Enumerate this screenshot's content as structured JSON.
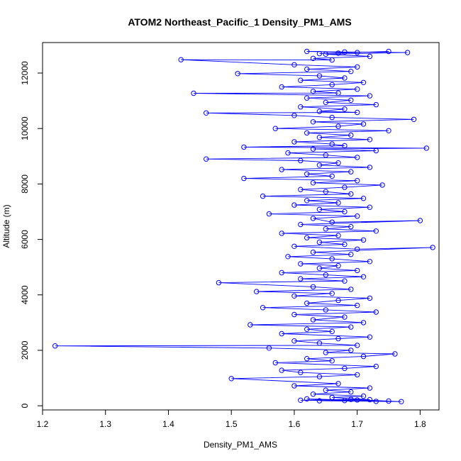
{
  "chart_data": {
    "type": "line",
    "title": "ATOM2 Northeast_Pacific_1 Density_PM1_AMS",
    "xlabel": "Density_PM1_AMS",
    "ylabel": "Altitude (m)",
    "xlim": [
      1.2,
      1.83
    ],
    "ylim": [
      -150,
      13100
    ],
    "x_ticks": [
      "1.2",
      "1.3",
      "1.4",
      "1.5",
      "1.6",
      "1.7",
      "1.8"
    ],
    "y_ticks": [
      "0",
      "2000",
      "4000",
      "6000",
      "8000",
      "10000",
      "12000"
    ],
    "grid": false,
    "marker": "open-circle",
    "series": [
      {
        "color": "#0000ff",
        "points": [
          [
            1.73,
            160
          ],
          [
            1.61,
            200
          ],
          [
            1.69,
            230
          ],
          [
            1.77,
            150
          ],
          [
            1.64,
            180
          ],
          [
            1.7,
            210
          ],
          [
            1.75,
            170
          ],
          [
            1.62,
            250
          ],
          [
            1.68,
            190
          ],
          [
            1.72,
            220
          ],
          [
            1.66,
            300
          ],
          [
            1.71,
            350
          ],
          [
            1.63,
            420
          ],
          [
            1.69,
            500
          ],
          [
            1.65,
            560
          ],
          [
            1.72,
            640
          ],
          [
            1.6,
            720
          ],
          [
            1.67,
            800
          ],
          [
            1.5,
            980
          ],
          [
            1.64,
            1050
          ],
          [
            1.7,
            1120
          ],
          [
            1.61,
            1200
          ],
          [
            1.58,
            1280
          ],
          [
            1.68,
            1350
          ],
          [
            1.73,
            1420
          ],
          [
            1.57,
            1550
          ],
          [
            1.66,
            1620
          ],
          [
            1.62,
            1700
          ],
          [
            1.71,
            1780
          ],
          [
            1.76,
            1870
          ],
          [
            1.65,
            1920
          ],
          [
            1.69,
            2000
          ],
          [
            1.56,
            2080
          ],
          [
            1.22,
            2160
          ],
          [
            1.7,
            2180
          ],
          [
            1.64,
            2260
          ],
          [
            1.6,
            2340
          ],
          [
            1.67,
            2420
          ],
          [
            1.72,
            2480
          ],
          [
            1.58,
            2600
          ],
          [
            1.66,
            2680
          ],
          [
            1.62,
            2760
          ],
          [
            1.69,
            2840
          ],
          [
            1.53,
            2920
          ],
          [
            1.71,
            3000
          ],
          [
            1.63,
            3100
          ],
          [
            1.68,
            3200
          ],
          [
            1.6,
            3290
          ],
          [
            1.73,
            3380
          ],
          [
            1.65,
            3460
          ],
          [
            1.55,
            3540
          ],
          [
            1.7,
            3620
          ],
          [
            1.62,
            3700
          ],
          [
            1.67,
            3800
          ],
          [
            1.72,
            3880
          ],
          [
            1.6,
            3960
          ],
          [
            1.66,
            4050
          ],
          [
            1.54,
            4120
          ],
          [
            1.69,
            4200
          ],
          [
            1.63,
            4290
          ],
          [
            1.48,
            4440
          ],
          [
            1.68,
            4500
          ],
          [
            1.61,
            4580
          ],
          [
            1.71,
            4650
          ],
          [
            1.65,
            4720
          ],
          [
            1.58,
            4800
          ],
          [
            1.7,
            4880
          ],
          [
            1.64,
            4960
          ],
          [
            1.67,
            5050
          ],
          [
            1.61,
            5120
          ],
          [
            1.72,
            5200
          ],
          [
            1.66,
            5300
          ],
          [
            1.59,
            5380
          ],
          [
            1.69,
            5460
          ],
          [
            1.63,
            5540
          ],
          [
            1.82,
            5710
          ],
          [
            1.7,
            5650
          ],
          [
            1.6,
            5750
          ],
          [
            1.68,
            5820
          ],
          [
            1.64,
            5900
          ],
          [
            1.71,
            5980
          ],
          [
            1.62,
            6060
          ],
          [
            1.67,
            6140
          ],
          [
            1.58,
            6220
          ],
          [
            1.73,
            6300
          ],
          [
            1.65,
            6380
          ],
          [
            1.69,
            6460
          ],
          [
            1.61,
            6540
          ],
          [
            1.8,
            6680
          ],
          [
            1.66,
            6620
          ],
          [
            1.63,
            6760
          ],
          [
            1.7,
            6840
          ],
          [
            1.56,
            6920
          ],
          [
            1.68,
            7000
          ],
          [
            1.64,
            7080
          ],
          [
            1.72,
            7160
          ],
          [
            1.6,
            7240
          ],
          [
            1.67,
            7320
          ],
          [
            1.62,
            7400
          ],
          [
            1.71,
            7480
          ],
          [
            1.55,
            7560
          ],
          [
            1.69,
            7640
          ],
          [
            1.65,
            7720
          ],
          [
            1.61,
            7800
          ],
          [
            1.68,
            7880
          ],
          [
            1.74,
            7960
          ],
          [
            1.63,
            8040
          ],
          [
            1.7,
            8120
          ],
          [
            1.52,
            8200
          ],
          [
            1.66,
            8280
          ],
          [
            1.62,
            8360
          ],
          [
            1.69,
            8440
          ],
          [
            1.58,
            8520
          ],
          [
            1.72,
            8600
          ],
          [
            1.64,
            8680
          ],
          [
            1.67,
            8760
          ],
          [
            1.61,
            8840
          ],
          [
            1.46,
            8900
          ],
          [
            1.7,
            8960
          ],
          [
            1.65,
            9040
          ],
          [
            1.59,
            9120
          ],
          [
            1.73,
            9200
          ],
          [
            1.63,
            9260
          ],
          [
            1.81,
            9290
          ],
          [
            1.52,
            9330
          ],
          [
            1.68,
            9380
          ],
          [
            1.66,
            9440
          ],
          [
            1.6,
            9520
          ],
          [
            1.72,
            9600
          ],
          [
            1.64,
            9680
          ],
          [
            1.69,
            9760
          ],
          [
            1.62,
            9840
          ],
          [
            1.75,
            9920
          ],
          [
            1.57,
            10000
          ],
          [
            1.67,
            10080
          ],
          [
            1.71,
            10160
          ],
          [
            1.63,
            10240
          ],
          [
            1.79,
            10330
          ],
          [
            1.66,
            10400
          ],
          [
            1.6,
            10470
          ],
          [
            1.46,
            10560
          ],
          [
            1.7,
            10580
          ],
          [
            1.64,
            10620
          ],
          [
            1.68,
            10700
          ],
          [
            1.61,
            10780
          ],
          [
            1.73,
            10860
          ],
          [
            1.65,
            10940
          ],
          [
            1.69,
            11020
          ],
          [
            1.62,
            11100
          ],
          [
            1.72,
            11180
          ],
          [
            1.44,
            11270
          ],
          [
            1.67,
            11280
          ],
          [
            1.63,
            11340
          ],
          [
            1.7,
            11420
          ],
          [
            1.58,
            11500
          ],
          [
            1.66,
            11580
          ],
          [
            1.71,
            11660
          ],
          [
            1.61,
            11740
          ],
          [
            1.68,
            11820
          ],
          [
            1.64,
            11900
          ],
          [
            1.51,
            11980
          ],
          [
            1.69,
            12060
          ],
          [
            1.62,
            12140
          ],
          [
            1.7,
            12220
          ],
          [
            1.6,
            12300
          ],
          [
            1.42,
            12480
          ],
          [
            1.66,
            12470
          ],
          [
            1.63,
            12530
          ],
          [
            1.72,
            12600
          ],
          [
            1.65,
            12680
          ],
          [
            1.78,
            12740
          ],
          [
            1.68,
            12760
          ],
          [
            1.62,
            12780
          ],
          [
            1.7,
            12740
          ],
          [
            1.64,
            12700
          ],
          [
            1.75,
            12780
          ],
          [
            1.67,
            12720
          ]
        ]
      }
    ]
  }
}
